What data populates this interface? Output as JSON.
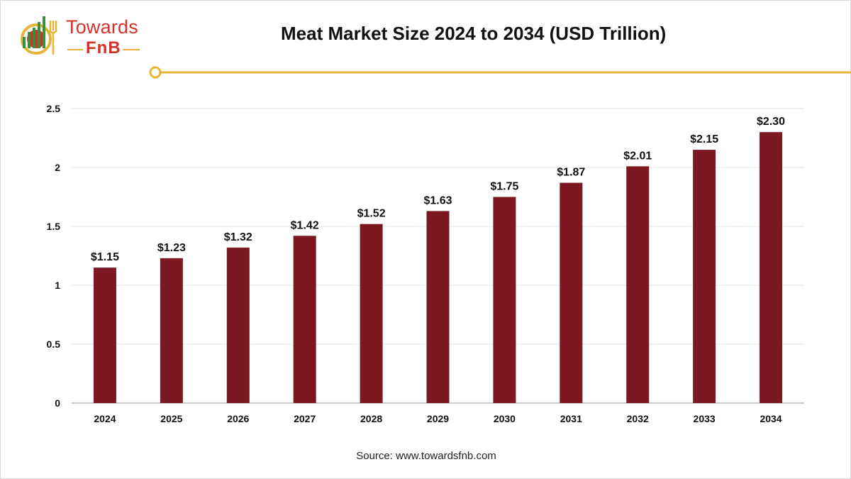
{
  "brand": {
    "name_top": "Towards",
    "name_bottom": "FnB",
    "logo_color": "#d6302a",
    "accent_color": "#e8b339"
  },
  "colors": {
    "bar": "#7b1822",
    "grid": "#e6e6e6",
    "axis": "#999999",
    "text": "#111111"
  },
  "source_text": "Source: www.towardsfnb.com",
  "chart_data": {
    "type": "bar",
    "title": "Meat Market Size 2024 to 2034 (USD Trillion)",
    "xlabel": "",
    "ylabel": "",
    "categories": [
      "2024",
      "2025",
      "2026",
      "2027",
      "2028",
      "2029",
      "2030",
      "2031",
      "2032",
      "2033",
      "2034"
    ],
    "values": [
      1.15,
      1.23,
      1.32,
      1.42,
      1.52,
      1.63,
      1.75,
      1.87,
      2.01,
      2.15,
      2.3
    ],
    "data_labels": [
      "$1.15",
      "$1.23",
      "$1.32",
      "$1.42",
      "$1.52",
      "$1.63",
      "$1.75",
      "$1.87",
      "$2.01",
      "$2.15",
      "$2.30"
    ],
    "yticks": [
      "0",
      "0.5",
      "1",
      "1.5",
      "2",
      "2.5"
    ],
    "ylim": [
      0,
      2.5
    ],
    "grid": true,
    "legend": "none"
  }
}
